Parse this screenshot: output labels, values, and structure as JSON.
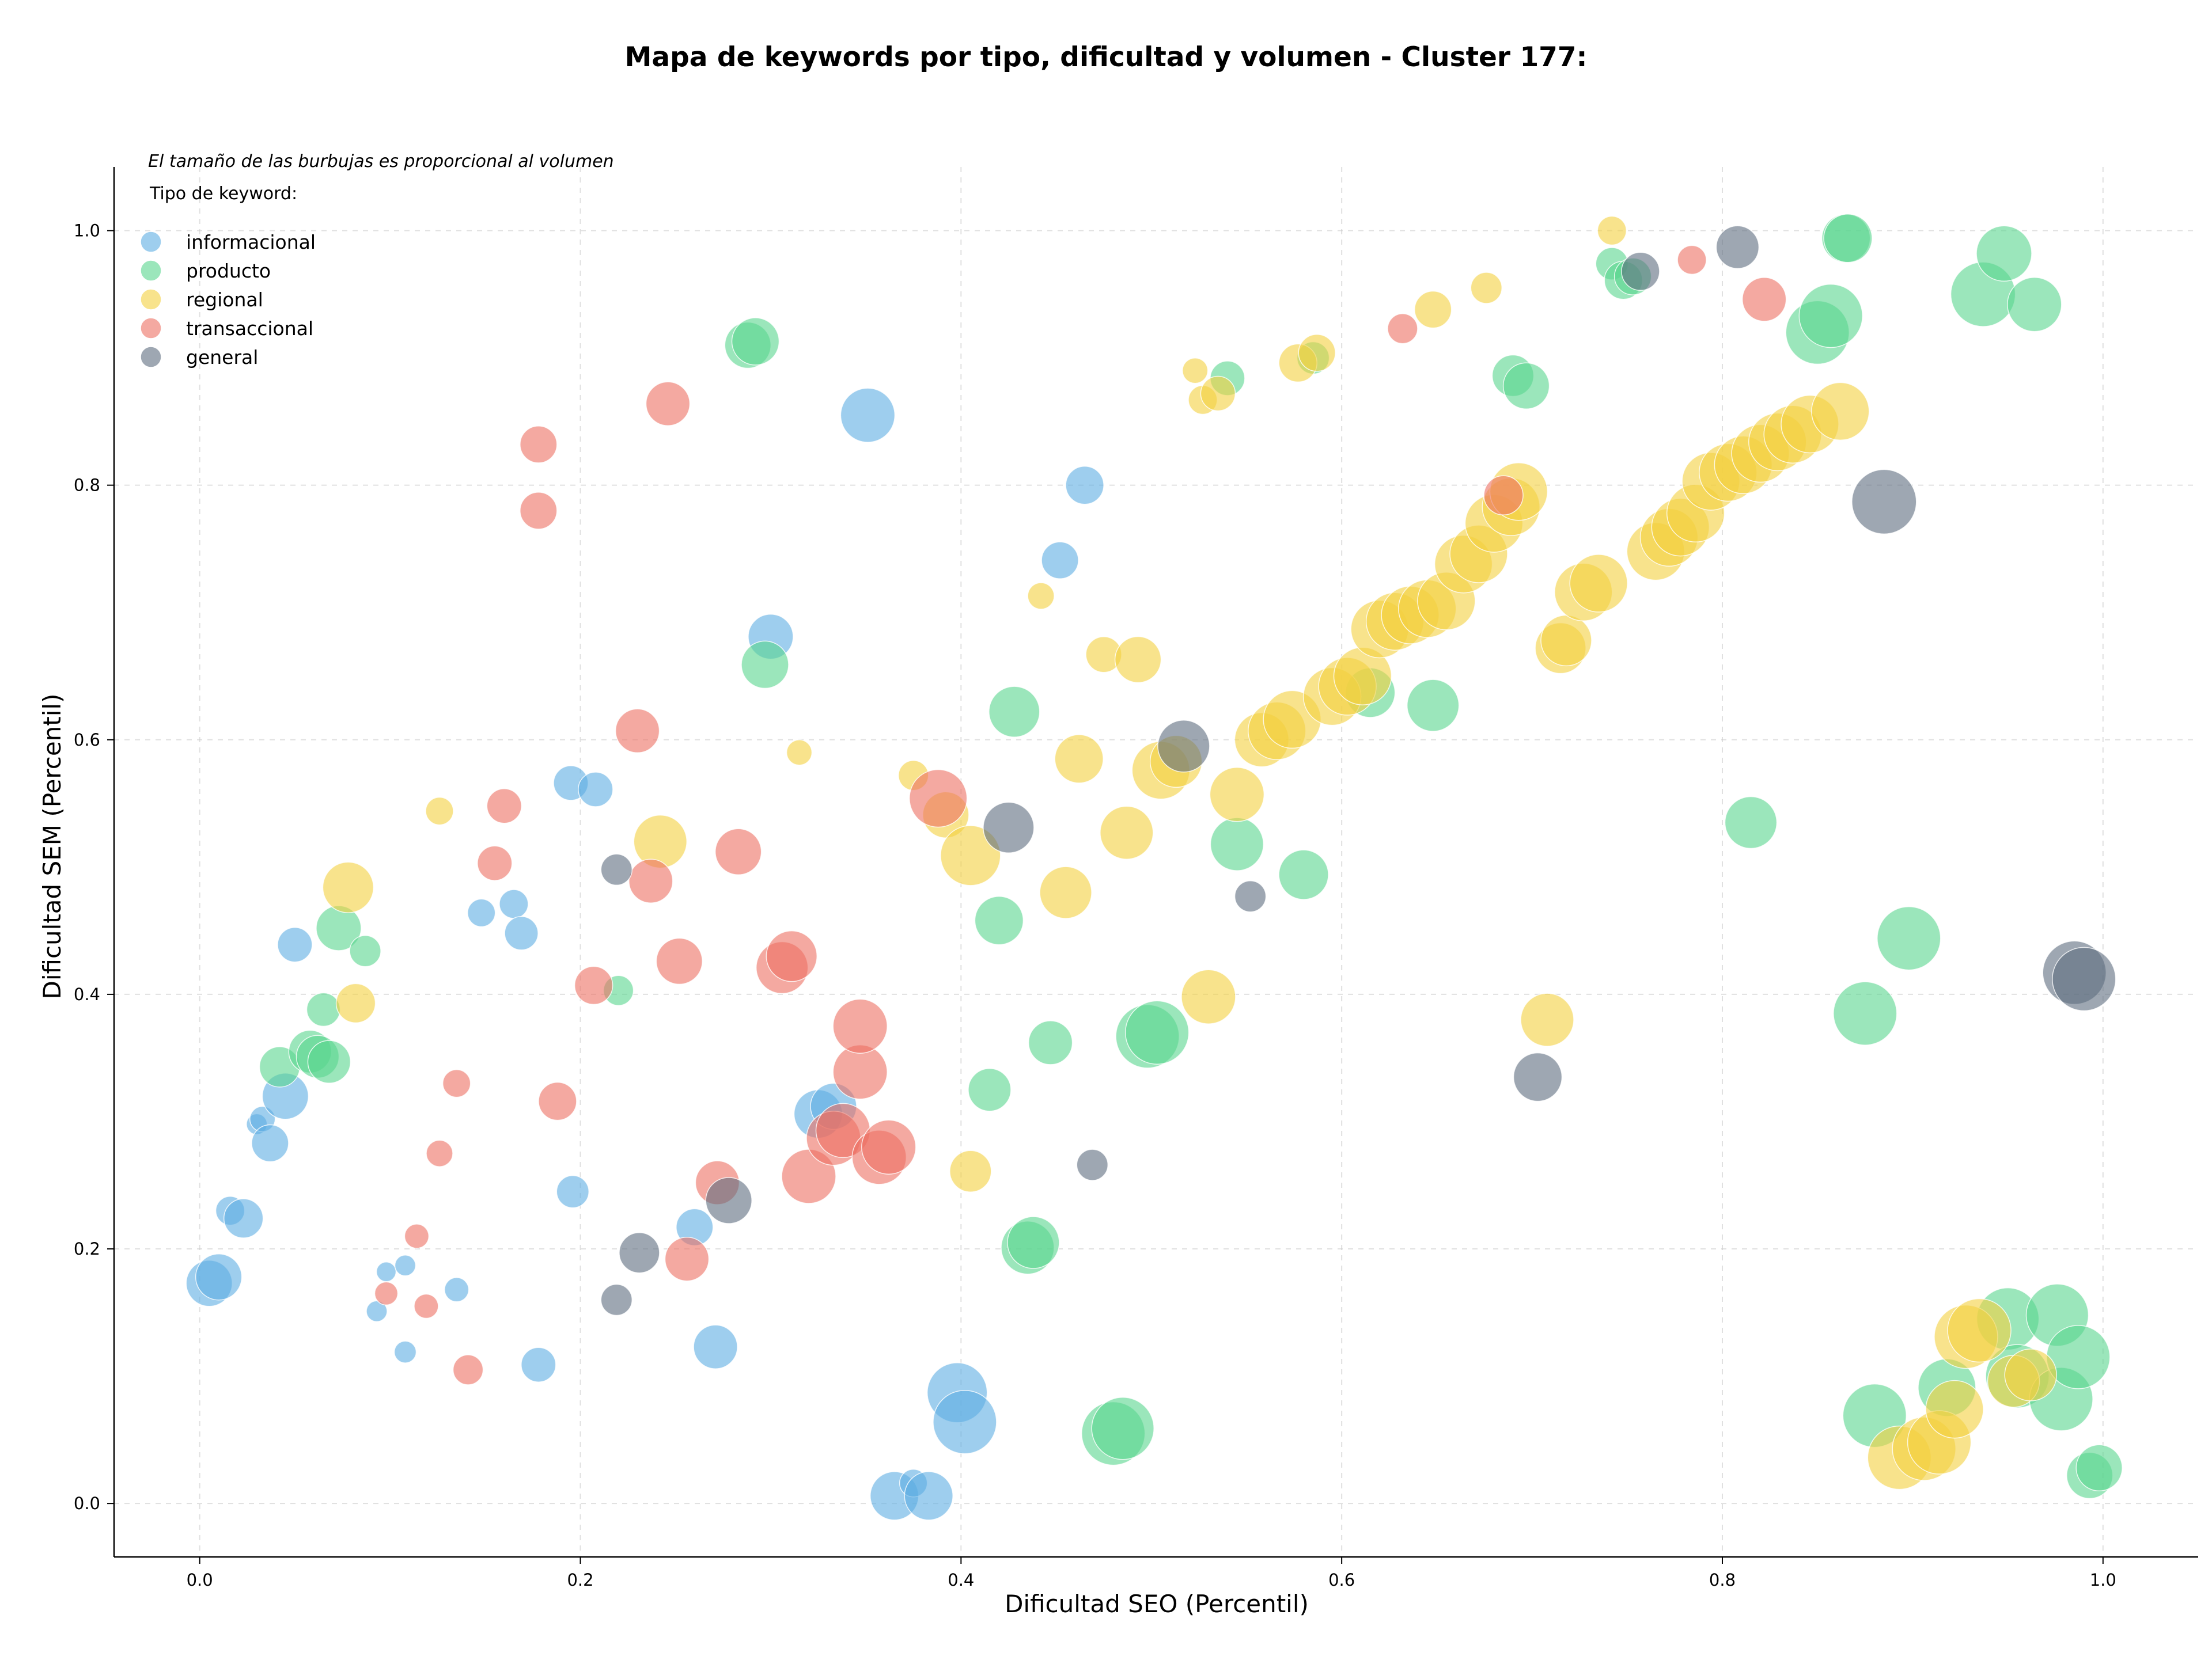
{
  "chart_data": {
    "type": "scatter",
    "title": "Mapa de keywords por tipo, dificultad y volumen - Cluster 177:",
    "xlabel": "Dificultad SEO (Percentil)",
    "ylabel": "Dificultad SEM (Percentil)",
    "xlim": [
      -0.045,
      1.05
    ],
    "ylim": [
      -0.042,
      1.05
    ],
    "xticks": [
      "0.0",
      "0.2",
      "0.4",
      "0.6",
      "0.8",
      "1.0"
    ],
    "yticks": [
      "0.0",
      "0.2",
      "0.4",
      "0.6",
      "0.8",
      "1.0"
    ],
    "grid": true,
    "legend_position": "top-left",
    "size_note": "El tamaño de las burbujas es proporcional al volumen",
    "legend_title": "Tipo de keyword:",
    "point_format": "[x, y, relative size]",
    "series": [
      {
        "name": "informacional",
        "color": "#5DADE2",
        "points": [
          [
            0.005,
            0.173,
            40
          ],
          [
            0.01,
            0.178,
            40
          ],
          [
            0.016,
            0.23,
            25
          ],
          [
            0.023,
            0.224,
            34
          ],
          [
            0.03,
            0.298,
            18
          ],
          [
            0.033,
            0.302,
            22
          ],
          [
            0.037,
            0.283,
            32
          ],
          [
            0.045,
            0.32,
            40
          ],
          [
            0.05,
            0.439,
            30
          ],
          [
            0.093,
            0.151,
            18
          ],
          [
            0.098,
            0.182,
            17
          ],
          [
            0.108,
            0.187,
            18
          ],
          [
            0.108,
            0.119,
            19
          ],
          [
            0.135,
            0.168,
            21
          ],
          [
            0.148,
            0.464,
            24
          ],
          [
            0.165,
            0.471,
            25
          ],
          [
            0.169,
            0.448,
            29
          ],
          [
            0.178,
            0.109,
            30
          ],
          [
            0.195,
            0.566,
            30
          ],
          [
            0.196,
            0.245,
            28
          ],
          [
            0.208,
            0.561,
            30
          ],
          [
            0.26,
            0.217,
            32
          ],
          [
            0.271,
            0.123,
            38
          ],
          [
            0.3,
            0.681,
            39
          ],
          [
            0.325,
            0.306,
            42
          ],
          [
            0.333,
            0.312,
            40
          ],
          [
            0.351,
            0.855,
            47
          ],
          [
            0.365,
            0.006,
            42
          ],
          [
            0.375,
            0.016,
            24
          ],
          [
            0.383,
            0.006,
            42
          ],
          [
            0.398,
            0.087,
            52
          ],
          [
            0.402,
            0.064,
            55
          ],
          [
            0.452,
            0.741,
            32
          ],
          [
            0.465,
            0.8,
            33
          ]
        ]
      },
      {
        "name": "producto",
        "color": "#58D68D",
        "points": [
          [
            0.042,
            0.343,
            35
          ],
          [
            0.058,
            0.355,
            37
          ],
          [
            0.062,
            0.351,
            37
          ],
          [
            0.065,
            0.388,
            29
          ],
          [
            0.068,
            0.347,
            37
          ],
          [
            0.073,
            0.452,
            39
          ],
          [
            0.087,
            0.434,
            27
          ],
          [
            0.22,
            0.403,
            26
          ],
          [
            0.288,
            0.91,
            40
          ],
          [
            0.292,
            0.913,
            41
          ],
          [
            0.297,
            0.659,
            41
          ],
          [
            0.415,
            0.325,
            37
          ],
          [
            0.42,
            0.458,
            42
          ],
          [
            0.428,
            0.622,
            44
          ],
          [
            0.435,
            0.201,
            46
          ],
          [
            0.438,
            0.205,
            45
          ],
          [
            0.447,
            0.362,
            38
          ],
          [
            0.48,
            0.055,
            55
          ],
          [
            0.485,
            0.059,
            54
          ],
          [
            0.498,
            0.367,
            55
          ],
          [
            0.503,
            0.37,
            55
          ],
          [
            0.54,
            0.884,
            30
          ],
          [
            0.545,
            0.518,
            46
          ],
          [
            0.58,
            0.494,
            43
          ],
          [
            0.585,
            0.9,
            28
          ],
          [
            0.615,
            0.637,
            43
          ],
          [
            0.648,
            0.627,
            45
          ],
          [
            0.69,
            0.886,
            36
          ],
          [
            0.697,
            0.878,
            40
          ],
          [
            0.742,
            0.974,
            28
          ],
          [
            0.748,
            0.961,
            33
          ],
          [
            0.753,
            0.964,
            32
          ],
          [
            0.815,
            0.535,
            45
          ],
          [
            0.85,
            0.92,
            55
          ],
          [
            0.857,
            0.933,
            55
          ],
          [
            0.865,
            0.994,
            42
          ],
          [
            0.866,
            0.994,
            42
          ],
          [
            0.875,
            0.385,
            55
          ],
          [
            0.88,
            0.069,
            55
          ],
          [
            0.898,
            0.444,
            55
          ],
          [
            0.918,
            0.091,
            50
          ],
          [
            0.937,
            0.95,
            56
          ],
          [
            0.948,
            0.982,
            48
          ],
          [
            0.95,
            0.145,
            54
          ],
          [
            0.955,
            0.1,
            55
          ],
          [
            0.964,
            0.942,
            47
          ],
          [
            0.976,
            0.148,
            54
          ],
          [
            0.978,
            0.082,
            55
          ],
          [
            0.987,
            0.115,
            55
          ],
          [
            0.993,
            0.022,
            40
          ],
          [
            0.998,
            0.028,
            40
          ]
        ]
      },
      {
        "name": "regional",
        "color": "#F4D03F",
        "points": [
          [
            0.078,
            0.484,
            44
          ],
          [
            0.082,
            0.393,
            34
          ],
          [
            0.126,
            0.544,
            24
          ],
          [
            0.242,
            0.52,
            46
          ],
          [
            0.315,
            0.59,
            22
          ],
          [
            0.375,
            0.572,
            26
          ],
          [
            0.392,
            0.541,
            40
          ],
          [
            0.405,
            0.509,
            52
          ],
          [
            0.405,
            0.261,
            36
          ],
          [
            0.442,
            0.713,
            23
          ],
          [
            0.455,
            0.48,
            45
          ],
          [
            0.462,
            0.585,
            42
          ],
          [
            0.475,
            0.667,
            31
          ],
          [
            0.487,
            0.527,
            46
          ],
          [
            0.493,
            0.663,
            40
          ],
          [
            0.505,
            0.576,
            50
          ],
          [
            0.513,
            0.583,
            45
          ],
          [
            0.523,
            0.89,
            22
          ],
          [
            0.527,
            0.867,
            25
          ],
          [
            0.53,
            0.398,
            47
          ],
          [
            0.535,
            0.872,
            30
          ],
          [
            0.545,
            0.557,
            47
          ],
          [
            0.558,
            0.6,
            47
          ],
          [
            0.566,
            0.607,
            50
          ],
          [
            0.574,
            0.616,
            50
          ],
          [
            0.577,
            0.896,
            33
          ],
          [
            0.587,
            0.904,
            32
          ],
          [
            0.595,
            0.634,
            50
          ],
          [
            0.603,
            0.642,
            50
          ],
          [
            0.611,
            0.65,
            50
          ],
          [
            0.62,
            0.687,
            50
          ],
          [
            0.628,
            0.693,
            50
          ],
          [
            0.636,
            0.698,
            50
          ],
          [
            0.645,
            0.703,
            50
          ],
          [
            0.648,
            0.938,
            32
          ],
          [
            0.655,
            0.709,
            50
          ],
          [
            0.664,
            0.738,
            50
          ],
          [
            0.672,
            0.746,
            50
          ],
          [
            0.676,
            0.955,
            27
          ],
          [
            0.68,
            0.77,
            50
          ],
          [
            0.689,
            0.783,
            50
          ],
          [
            0.693,
            0.795,
            50
          ],
          [
            0.708,
            0.38,
            46
          ],
          [
            0.715,
            0.672,
            44
          ],
          [
            0.718,
            0.678,
            44
          ],
          [
            0.727,
            0.716,
            50
          ],
          [
            0.735,
            0.723,
            50
          ],
          [
            0.742,
            1.0,
            25
          ],
          [
            0.765,
            0.748,
            50
          ],
          [
            0.772,
            0.759,
            50
          ],
          [
            0.778,
            0.767,
            50
          ],
          [
            0.786,
            0.778,
            50
          ],
          [
            0.794,
            0.803,
            50
          ],
          [
            0.803,
            0.81,
            50
          ],
          [
            0.811,
            0.816,
            50
          ],
          [
            0.82,
            0.825,
            50
          ],
          [
            0.829,
            0.834,
            50
          ],
          [
            0.837,
            0.84,
            50
          ],
          [
            0.846,
            0.848,
            50
          ],
          [
            0.862,
            0.858,
            50
          ],
          [
            0.893,
            0.036,
            55
          ],
          [
            0.906,
            0.043,
            55
          ],
          [
            0.914,
            0.048,
            55
          ],
          [
            0.922,
            0.074,
            50
          ],
          [
            0.928,
            0.131,
            55
          ],
          [
            0.935,
            0.136,
            55
          ],
          [
            0.953,
            0.096,
            45
          ],
          [
            0.962,
            0.101,
            45
          ]
        ]
      },
      {
        "name": "transaccional",
        "color": "#EC7063",
        "points": [
          [
            0.098,
            0.165,
            20
          ],
          [
            0.114,
            0.21,
            21
          ],
          [
            0.119,
            0.155,
            21
          ],
          [
            0.126,
            0.275,
            23
          ],
          [
            0.135,
            0.33,
            24
          ],
          [
            0.141,
            0.105,
            26
          ],
          [
            0.155,
            0.503,
            30
          ],
          [
            0.16,
            0.548,
            30
          ],
          [
            0.178,
            0.832,
            32
          ],
          [
            0.178,
            0.78,
            32
          ],
          [
            0.188,
            0.316,
            33
          ],
          [
            0.207,
            0.407,
            33
          ],
          [
            0.23,
            0.607,
            38
          ],
          [
            0.237,
            0.489,
            38
          ],
          [
            0.246,
            0.864,
            38
          ],
          [
            0.252,
            0.426,
            40
          ],
          [
            0.256,
            0.192,
            38
          ],
          [
            0.272,
            0.252,
            38
          ],
          [
            0.283,
            0.512,
            40
          ],
          [
            0.306,
            0.421,
            45
          ],
          [
            0.311,
            0.43,
            44
          ],
          [
            0.32,
            0.257,
            47
          ],
          [
            0.333,
            0.287,
            47
          ],
          [
            0.338,
            0.293,
            47
          ],
          [
            0.347,
            0.339,
            47
          ],
          [
            0.347,
            0.375,
            47
          ],
          [
            0.357,
            0.272,
            47
          ],
          [
            0.362,
            0.28,
            47
          ],
          [
            0.388,
            0.554,
            50
          ],
          [
            0.632,
            0.923,
            26
          ],
          [
            0.685,
            0.792,
            34
          ],
          [
            0.784,
            0.977,
            25
          ],
          [
            0.822,
            0.946,
            38
          ]
        ]
      },
      {
        "name": "general",
        "color": "#5D6D7E",
        "points": [
          [
            0.219,
            0.498,
            27
          ],
          [
            0.219,
            0.16,
            27
          ],
          [
            0.231,
            0.197,
            35
          ],
          [
            0.278,
            0.238,
            40
          ],
          [
            0.425,
            0.531,
            44
          ],
          [
            0.469,
            0.266,
            27
          ],
          [
            0.517,
            0.595,
            45
          ],
          [
            0.552,
            0.477,
            27
          ],
          [
            0.703,
            0.335,
            42
          ],
          [
            0.757,
            0.968,
            33
          ],
          [
            0.808,
            0.987,
            37
          ],
          [
            0.885,
            0.787,
            56
          ],
          [
            0.985,
            0.417,
            55
          ],
          [
            0.99,
            0.412,
            55
          ]
        ]
      }
    ]
  }
}
